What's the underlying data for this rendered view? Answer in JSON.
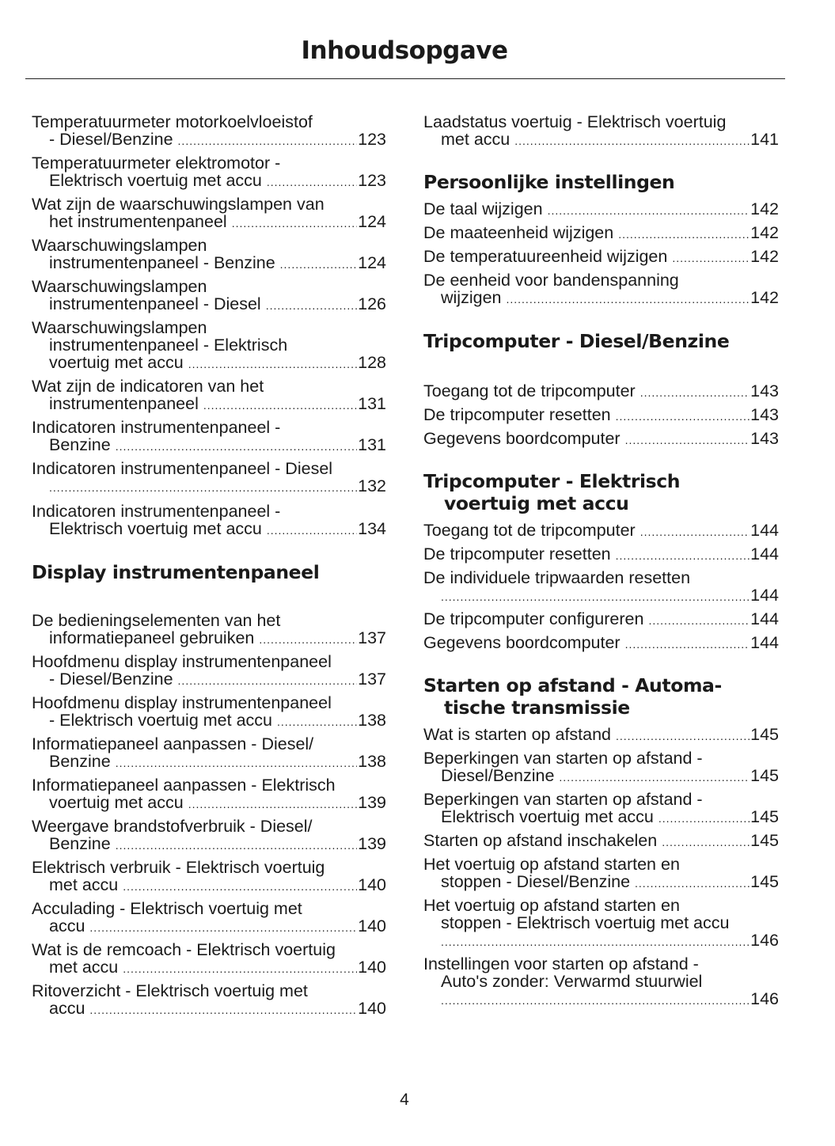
{
  "title": "Inhoudsopgave",
  "page_number": "4",
  "toc": {
    "left": [
      {
        "type": "entry",
        "lines": [
          "Temperatuurmeter motorkoelvloeistof",
          "- Diesel/Benzine"
        ],
        "page": "123"
      },
      {
        "type": "entry",
        "lines": [
          "Temperatuurmeter elektromotor -",
          "Elektrisch voertuig met accu"
        ],
        "page": "123"
      },
      {
        "type": "entry",
        "lines": [
          "Wat zijn de waarschuwingslampen van",
          "het instrumentenpaneel"
        ],
        "page": "124"
      },
      {
        "type": "entry",
        "lines": [
          "Waarschuwingslampen",
          "instrumentenpaneel - Benzine"
        ],
        "page": "124"
      },
      {
        "type": "entry",
        "lines": [
          "Waarschuwingslampen",
          "instrumentenpaneel - Diesel"
        ],
        "page": "126"
      },
      {
        "type": "entry",
        "lines": [
          "Waarschuwingslampen",
          "instrumentenpaneel - Elektrisch",
          "voertuig met accu"
        ],
        "page": "128"
      },
      {
        "type": "entry",
        "lines": [
          "Wat zijn de indicatoren van het",
          "instrumentenpaneel"
        ],
        "page": "131"
      },
      {
        "type": "entry",
        "lines": [
          "Indicatoren instrumentenpaneel -",
          "Benzine"
        ],
        "page": "131"
      },
      {
        "type": "entry",
        "lines": [
          "Indicatoren instrumentenpaneel - Diesel",
          ""
        ],
        "page": "132"
      },
      {
        "type": "entry",
        "lines": [
          "Indicatoren instrumentenpaneel -",
          "Elektrisch voertuig met accu"
        ],
        "page": "134"
      },
      {
        "type": "heading",
        "lines": [
          "Display instrumentenpaneel"
        ]
      },
      {
        "type": "entry",
        "lines": [
          "De bedieningselementen van het",
          "informatiepaneel gebruiken"
        ],
        "page": "137"
      },
      {
        "type": "entry",
        "lines": [
          "Hoofdmenu display instrumentenpaneel",
          "- Diesel/Benzine"
        ],
        "page": "137"
      },
      {
        "type": "entry",
        "lines": [
          "Hoofdmenu display instrumentenpaneel",
          "- Elektrisch voertuig met accu"
        ],
        "page": "138"
      },
      {
        "type": "entry",
        "lines": [
          "Informatiepaneel aanpassen - Diesel/",
          "Benzine"
        ],
        "page": "138"
      },
      {
        "type": "entry",
        "lines": [
          "Informatiepaneel aanpassen - Elektrisch",
          "voertuig met accu"
        ],
        "page": "139"
      },
      {
        "type": "entry",
        "lines": [
          "Weergave brandstofverbruik - Diesel/",
          "Benzine"
        ],
        "page": "139"
      },
      {
        "type": "entry",
        "lines": [
          "Elektrisch verbruik - Elektrisch voertuig",
          "met accu"
        ],
        "page": "140"
      },
      {
        "type": "entry",
        "lines": [
          "Acculading - Elektrisch voertuig met",
          "accu"
        ],
        "page": "140"
      },
      {
        "type": "entry",
        "lines": [
          "Wat is de remcoach - Elektrisch voertuig",
          "met accu"
        ],
        "page": "140"
      },
      {
        "type": "entry",
        "lines": [
          "Ritoverzicht - Elektrisch voertuig met",
          "accu"
        ],
        "page": "140"
      }
    ],
    "right": [
      {
        "type": "entry",
        "lines": [
          "Laadstatus voertuig - Elektrisch voertuig",
          "met accu"
        ],
        "page": "141"
      },
      {
        "type": "heading",
        "lines": [
          "Persoonlijke instellingen"
        ]
      },
      {
        "type": "entry",
        "lines": [
          "De taal wijzigen"
        ],
        "page": "142"
      },
      {
        "type": "entry",
        "lines": [
          "De maateenheid wijzigen"
        ],
        "page": "142"
      },
      {
        "type": "entry",
        "lines": [
          "De temperatuureenheid wijzigen"
        ],
        "page": "142"
      },
      {
        "type": "entry",
        "lines": [
          "De eenheid voor bandenspanning",
          "wijzigen"
        ],
        "page": "142"
      },
      {
        "type": "heading",
        "lines": [
          "Tripcomputer - Diesel/Benzine"
        ]
      },
      {
        "type": "entry",
        "lines": [
          "Toegang tot de tripcomputer"
        ],
        "page": "143"
      },
      {
        "type": "entry",
        "lines": [
          "De tripcomputer resetten"
        ],
        "page": "143"
      },
      {
        "type": "entry",
        "lines": [
          "Gegevens boordcomputer"
        ],
        "page": "143"
      },
      {
        "type": "heading",
        "lines": [
          "Tripcomputer - Elektrisch",
          "voertuig met accu"
        ]
      },
      {
        "type": "entry",
        "lines": [
          "Toegang tot de tripcomputer"
        ],
        "page": "144"
      },
      {
        "type": "entry",
        "lines": [
          "De tripcomputer resetten"
        ],
        "page": "144"
      },
      {
        "type": "entry",
        "lines": [
          "De individuele tripwaarden resetten",
          ""
        ],
        "page": "144"
      },
      {
        "type": "entry",
        "lines": [
          "De tripcomputer configureren"
        ],
        "page": "144"
      },
      {
        "type": "entry",
        "lines": [
          "Gegevens boordcomputer"
        ],
        "page": "144"
      },
      {
        "type": "heading",
        "lines": [
          "Starten op afstand - Automa-",
          "tische transmissie"
        ]
      },
      {
        "type": "entry",
        "lines": [
          "Wat is starten op afstand"
        ],
        "page": "145"
      },
      {
        "type": "entry",
        "lines": [
          "Beperkingen van starten op afstand -",
          "Diesel/Benzine"
        ],
        "page": "145"
      },
      {
        "type": "entry",
        "lines": [
          "Beperkingen van starten op afstand -",
          "Elektrisch voertuig met accu"
        ],
        "page": "145"
      },
      {
        "type": "entry",
        "lines": [
          "Starten op afstand inschakelen"
        ],
        "page": "145"
      },
      {
        "type": "entry",
        "lines": [
          "Het voertuig op afstand starten en",
          "stoppen - Diesel/Benzine"
        ],
        "page": "145"
      },
      {
        "type": "entry",
        "lines": [
          "Het voertuig op afstand starten en",
          "stoppen - Elektrisch voertuig met accu",
          ""
        ],
        "page": "146"
      },
      {
        "type": "entry",
        "lines": [
          "Instellingen voor starten op afstand -",
          "Auto's zonder: Verwarmd stuurwiel",
          ""
        ],
        "page": "146"
      }
    ]
  }
}
